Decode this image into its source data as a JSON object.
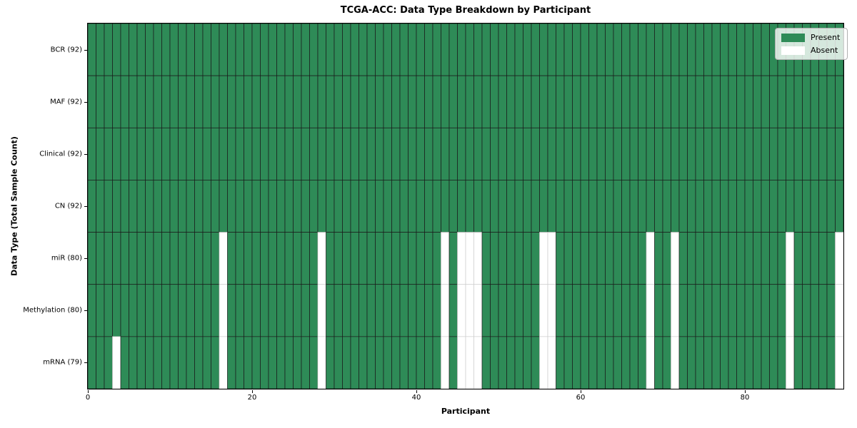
{
  "figure": {
    "title": "TCGA-ACC: Data Type Breakdown by Participant",
    "xlabel": "Participant",
    "ylabel": "Data Type (Total Sample Count)"
  },
  "chart_data": {
    "type": "heatmap",
    "title": "TCGA-ACC: Data Type Breakdown by Participant",
    "xlabel": "Participant",
    "ylabel": "Data Type (Total Sample Count)",
    "n_participants": 92,
    "x_range": [
      0,
      92
    ],
    "x_ticks": [
      0,
      20,
      40,
      60,
      80
    ],
    "grid": "cell-borders",
    "legend_position": "upper right",
    "legend": [
      {
        "label": "Present",
        "color": "#2e8b57"
      },
      {
        "label": "Absent",
        "color": "#ffffff"
      }
    ],
    "colors": {
      "present": "#2e8b57",
      "absent": "#ffffff",
      "present_edge": "#1a1a1a",
      "absent_edge": "#cccccc"
    },
    "rows": [
      {
        "label": "BCR (92)",
        "data_type": "BCR",
        "present_count": 92,
        "absent_participants": []
      },
      {
        "label": "MAF (92)",
        "data_type": "MAF",
        "present_count": 92,
        "absent_participants": []
      },
      {
        "label": "Clinical (92)",
        "data_type": "Clinical",
        "present_count": 92,
        "absent_participants": []
      },
      {
        "label": "CN (92)",
        "data_type": "CN",
        "present_count": 92,
        "absent_participants": []
      },
      {
        "label": "miR (80)",
        "data_type": "miR",
        "present_count": 80,
        "absent_participants": [
          16,
          28,
          43,
          45,
          46,
          47,
          55,
          56,
          68,
          71,
          85,
          91
        ]
      },
      {
        "label": "Methylation (80)",
        "data_type": "Methylation",
        "present_count": 80,
        "absent_participants": [
          16,
          28,
          43,
          45,
          46,
          47,
          55,
          56,
          68,
          71,
          85,
          91
        ]
      },
      {
        "label": "mRNA (79)",
        "data_type": "mRNA",
        "present_count": 79,
        "absent_participants": [
          3,
          16,
          28,
          43,
          45,
          46,
          47,
          55,
          56,
          68,
          71,
          85,
          91
        ]
      }
    ]
  }
}
